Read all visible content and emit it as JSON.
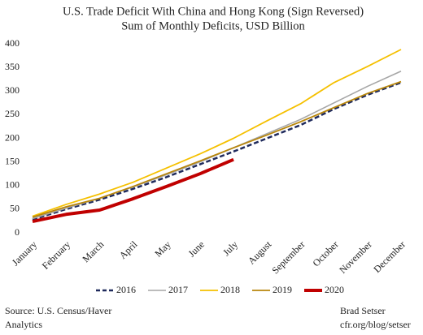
{
  "chart_data": {
    "type": "line",
    "title": "U.S. Trade Deficit With China and Hong Kong (Sign Reversed)",
    "subtitle": "Sum of Monthly Deficits, USD Billion",
    "categories": [
      "January",
      "February",
      "March",
      "April",
      "May",
      "June",
      "July",
      "August",
      "September",
      "October",
      "November",
      "December"
    ],
    "series": [
      {
        "name": "2016",
        "color": "#1f2a5c",
        "dash": true,
        "width": 2.5,
        "values": [
          28,
          50,
          70,
          93,
          118,
          145,
          172,
          200,
          228,
          262,
          292,
          318
        ]
      },
      {
        "name": "2017",
        "color": "#a6a6a6",
        "dash": false,
        "width": 1.6,
        "values": [
          30,
          52,
          73,
          97,
          123,
          150,
          180,
          210,
          240,
          275,
          310,
          342
        ]
      },
      {
        "name": "2018",
        "color": "#f5c000",
        "dash": false,
        "width": 1.8,
        "values": [
          35,
          60,
          82,
          107,
          137,
          167,
          200,
          237,
          273,
          318,
          352,
          388
        ]
      },
      {
        "name": "2019",
        "color": "#b8860b",
        "dash": false,
        "width": 1.8,
        "values": [
          33,
          55,
          73,
          98,
          125,
          152,
          180,
          207,
          235,
          265,
          295,
          320
        ]
      },
      {
        "name": "2020",
        "color": "#c00000",
        "dash": false,
        "width": 4,
        "values": [
          24,
          39,
          48,
          72,
          98,
          125,
          155,
          null,
          null,
          null,
          null,
          null
        ]
      }
    ],
    "ylim": [
      0,
      400
    ],
    "yticks": [
      0,
      50,
      100,
      150,
      200,
      250,
      300,
      350,
      400
    ],
    "grid": false,
    "source": [
      "Source: U.S. Census/Haver",
      "Analytics"
    ],
    "credit": [
      "Brad Setser",
      "cfr.org/blog/setser"
    ]
  }
}
